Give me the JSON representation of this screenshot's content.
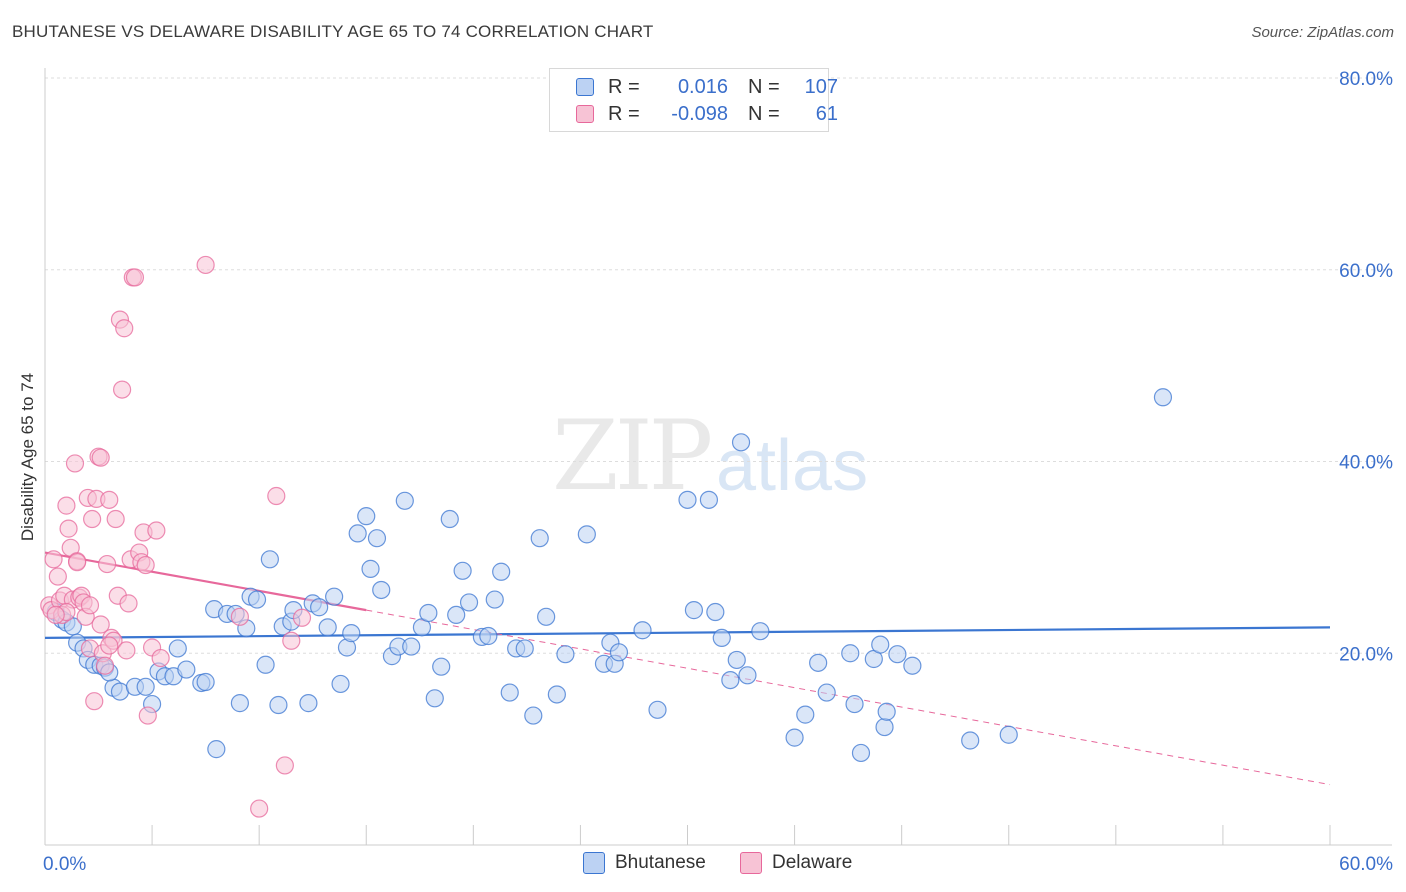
{
  "title": "BHUTANESE VS DELAWARE DISABILITY AGE 65 TO 74 CORRELATION CHART",
  "source": "Source: ZipAtlas.com",
  "watermark": {
    "zip": "ZIP",
    "atlas": "atlas"
  },
  "colors": {
    "blue": "#3b76d1",
    "blue_fill": "#bcd2f3",
    "pink": "#e7689b",
    "pink_fill": "#f7c3d5",
    "axis_text": "#3b6fcb",
    "grid": "#dddddd"
  },
  "legend": {
    "rows": [
      {
        "r_label": "R =",
        "r_value": "0.016",
        "n_label": "N =",
        "n_value": "107"
      },
      {
        "r_label": "R =",
        "r_value": "-0.098",
        "n_label": "N =",
        "n_value": "61"
      }
    ]
  },
  "bottom_legend": {
    "series1": "Bhutanese",
    "series2": "Delaware"
  },
  "chart_data": {
    "type": "scatter",
    "title": "BHUTANESE VS DELAWARE DISABILITY AGE 65 TO 74 CORRELATION CHART",
    "xlabel": "",
    "ylabel": "Disability Age 65 to 74",
    "xlim": [
      0,
      60
    ],
    "ylim": [
      0,
      80
    ],
    "x_tick_labels": [
      "0.0%",
      "60.0%"
    ],
    "y_tick_labels": [
      "20.0%",
      "40.0%",
      "60.0%",
      "80.0%"
    ],
    "y_ticks": [
      20,
      40,
      60,
      80
    ],
    "grid": true,
    "series": [
      {
        "name": "Bhutanese",
        "R": 0.016,
        "N": 107,
        "trend": {
          "x": [
            0,
            60
          ],
          "y": [
            21.6,
            22.7
          ]
        },
        "points": [
          [
            0.5,
            24.3
          ],
          [
            0.8,
            23.5
          ],
          [
            1,
            23.2
          ],
          [
            1.3,
            22.8
          ],
          [
            1.5,
            21.1
          ],
          [
            1.8,
            20.5
          ],
          [
            2,
            19.3
          ],
          [
            2.3,
            18.8
          ],
          [
            2.6,
            18.7
          ],
          [
            2.8,
            18.5
          ],
          [
            3.2,
            16.4
          ],
          [
            3.5,
            16.0
          ],
          [
            4.2,
            16.5
          ],
          [
            4.7,
            16.5
          ],
          [
            5,
            14.7
          ],
          [
            5.3,
            18.1
          ],
          [
            5.6,
            17.6
          ],
          [
            6,
            17.6
          ],
          [
            6.2,
            20.5
          ],
          [
            6.6,
            18.3
          ],
          [
            7.3,
            16.9
          ],
          [
            7.5,
            17.0
          ],
          [
            7.9,
            24.6
          ],
          [
            8,
            10.0
          ],
          [
            8.5,
            24.1
          ],
          [
            8.9,
            24.1
          ],
          [
            9.1,
            14.8
          ],
          [
            9.4,
            22.6
          ],
          [
            9.6,
            25.9
          ],
          [
            9.9,
            25.6
          ],
          [
            10.3,
            18.8
          ],
          [
            10.5,
            29.8
          ],
          [
            10.9,
            14.6
          ],
          [
            11.1,
            22.8
          ],
          [
            11.5,
            23.3
          ],
          [
            11.6,
            24.5
          ],
          [
            12.3,
            14.8
          ],
          [
            12.5,
            25.2
          ],
          [
            12.8,
            24.8
          ],
          [
            13.2,
            22.7
          ],
          [
            13.5,
            25.9
          ],
          [
            13.8,
            16.8
          ],
          [
            14.1,
            20.6
          ],
          [
            14.3,
            22.1
          ],
          [
            14.6,
            32.5
          ],
          [
            15,
            34.3
          ],
          [
            15.2,
            28.8
          ],
          [
            15.5,
            32.0
          ],
          [
            15.7,
            26.6
          ],
          [
            16.2,
            19.7
          ],
          [
            16.5,
            20.7
          ],
          [
            16.8,
            35.9
          ],
          [
            17.1,
            20.7
          ],
          [
            17.6,
            22.7
          ],
          [
            17.9,
            24.2
          ],
          [
            18.2,
            15.3
          ],
          [
            18.5,
            18.6
          ],
          [
            18.9,
            34.0
          ],
          [
            19.2,
            24.0
          ],
          [
            19.5,
            28.6
          ],
          [
            19.8,
            25.3
          ],
          [
            20.4,
            21.7
          ],
          [
            20.7,
            21.8
          ],
          [
            21,
            25.6
          ],
          [
            21.3,
            28.5
          ],
          [
            21.7,
            15.9
          ],
          [
            22,
            20.5
          ],
          [
            22.4,
            20.5
          ],
          [
            22.8,
            13.5
          ],
          [
            23.1,
            32.0
          ],
          [
            23.4,
            23.8
          ],
          [
            23.9,
            15.7
          ],
          [
            24.3,
            19.9
          ],
          [
            25.3,
            32.4
          ],
          [
            26.1,
            18.9
          ],
          [
            26.4,
            21.1
          ],
          [
            26.6,
            18.9
          ],
          [
            26.8,
            20.1
          ],
          [
            27.9,
            22.4
          ],
          [
            28.6,
            14.1
          ],
          [
            30,
            36.0
          ],
          [
            30.3,
            24.5
          ],
          [
            31,
            36.0
          ],
          [
            31.3,
            24.3
          ],
          [
            31.6,
            21.6
          ],
          [
            32,
            17.2
          ],
          [
            32.3,
            19.3
          ],
          [
            32.5,
            42.0
          ],
          [
            32.8,
            17.7
          ],
          [
            33.4,
            22.3
          ],
          [
            35,
            11.2
          ],
          [
            35.5,
            13.6
          ],
          [
            36.1,
            19.0
          ],
          [
            36.5,
            15.9
          ],
          [
            37.6,
            20.0
          ],
          [
            37.8,
            14.7
          ],
          [
            38.1,
            9.6
          ],
          [
            38.7,
            19.4
          ],
          [
            39,
            20.9
          ],
          [
            39.2,
            12.3
          ],
          [
            39.3,
            13.9
          ],
          [
            39.8,
            19.9
          ],
          [
            40.5,
            18.7
          ],
          [
            43.2,
            10.9
          ],
          [
            45,
            11.5
          ],
          [
            52.2,
            46.7
          ],
          [
            3,
            18.0
          ]
        ]
      },
      {
        "name": "Delaware",
        "R": -0.098,
        "N": 61,
        "trend": {
          "x": [
            0,
            15
          ],
          "y": [
            30.5,
            24.5
          ]
        },
        "trend_dashed": {
          "x": [
            15,
            60
          ],
          "y": [
            24.5,
            6.3
          ]
        },
        "points": [
          [
            0.2,
            25.0
          ],
          [
            0.3,
            24.5
          ],
          [
            0.4,
            29.8
          ],
          [
            0.6,
            28.0
          ],
          [
            0.7,
            25.5
          ],
          [
            0.9,
            26.0
          ],
          [
            1,
            35.4
          ],
          [
            1.1,
            33.0
          ],
          [
            1.2,
            31.0
          ],
          [
            1.3,
            25.6
          ],
          [
            1.4,
            39.8
          ],
          [
            1.5,
            29.6
          ],
          [
            1.6,
            25.8
          ],
          [
            1.7,
            26.0
          ],
          [
            1.8,
            25.3
          ],
          [
            1.9,
            23.8
          ],
          [
            2,
            36.2
          ],
          [
            2.1,
            20.5
          ],
          [
            2.2,
            34.0
          ],
          [
            2.3,
            15.0
          ],
          [
            2.4,
            36.1
          ],
          [
            2.5,
            40.5
          ],
          [
            2.6,
            40.4
          ],
          [
            2.7,
            20.0
          ],
          [
            2.8,
            18.7
          ],
          [
            2.9,
            29.3
          ],
          [
            3,
            36.0
          ],
          [
            3.1,
            21.6
          ],
          [
            3.2,
            21.3
          ],
          [
            3.3,
            34.0
          ],
          [
            3.4,
            26.0
          ],
          [
            3.5,
            54.8
          ],
          [
            3.6,
            47.5
          ],
          [
            3.7,
            53.9
          ],
          [
            3.8,
            20.3
          ],
          [
            3.9,
            25.2
          ],
          [
            4,
            29.8
          ],
          [
            4.1,
            59.2
          ],
          [
            4.2,
            59.2
          ],
          [
            4.4,
            30.5
          ],
          [
            4.5,
            29.5
          ],
          [
            4.6,
            32.6
          ],
          [
            4.7,
            29.2
          ],
          [
            4.8,
            13.5
          ],
          [
            5.0,
            20.6
          ],
          [
            5.2,
            32.8
          ],
          [
            5.4,
            19.5
          ],
          [
            7.5,
            60.5
          ],
          [
            9.1,
            23.8
          ],
          [
            10,
            3.8
          ],
          [
            10.8,
            36.4
          ],
          [
            11.2,
            8.3
          ],
          [
            11.5,
            21.3
          ],
          [
            12.0,
            23.7
          ],
          [
            0.8,
            24.0
          ],
          [
            1.0,
            24.3
          ],
          [
            1.5,
            29.5
          ],
          [
            2.1,
            25.0
          ],
          [
            2.6,
            23.0
          ],
          [
            3.0,
            20.8
          ],
          [
            0.5,
            24.0
          ]
        ]
      }
    ]
  }
}
